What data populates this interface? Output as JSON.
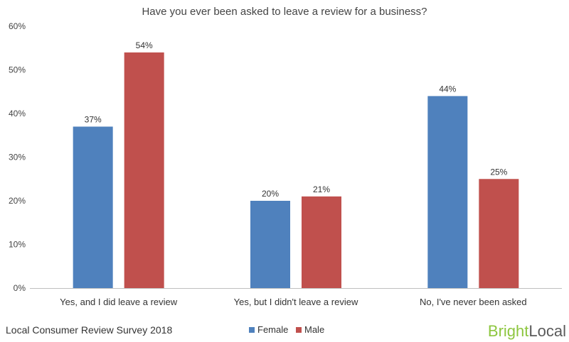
{
  "chart_data": {
    "type": "bar",
    "title": "Have you ever been asked to leave a review for a business?",
    "categories": [
      "Yes, and I did leave a review",
      "Yes, but I didn't leave a review",
      "No, I've never been asked"
    ],
    "series": [
      {
        "name": "Female",
        "values": [
          37,
          20,
          44
        ],
        "labels": [
          "37%",
          "20%",
          "44%"
        ],
        "color": "#4f81bd"
      },
      {
        "name": "Male",
        "values": [
          54,
          21,
          25
        ],
        "labels": [
          "54%",
          "21%",
          "25%"
        ],
        "color": "#c0504d"
      }
    ],
    "ylim": [
      0,
      60
    ],
    "yticks": [
      0,
      10,
      20,
      30,
      40,
      50,
      60
    ],
    "ytick_labels": [
      "0%",
      "10%",
      "20%",
      "30%",
      "40%",
      "50%",
      "60%"
    ],
    "grid": false,
    "legend_placement": "bottom-center"
  },
  "footer": {
    "source": "Local Consumer Review Survey 2018"
  },
  "brand": {
    "part1": "Bright",
    "part2": "Local",
    "color_bright": "#8dc63f",
    "color_local": "#5a5a5a"
  }
}
